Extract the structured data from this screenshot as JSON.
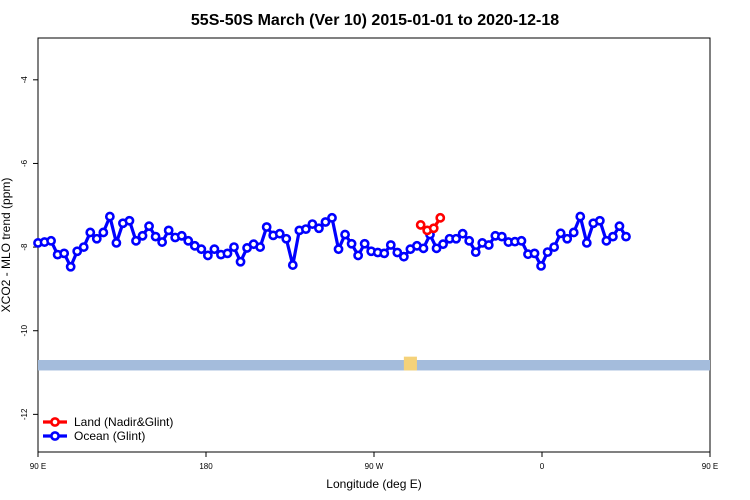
{
  "chart_data": {
    "type": "line",
    "title": "55S-50S March (Ver 10)   2015-01-01 to 2020-12-18",
    "xlabel": "Longitude (deg E)",
    "ylabel": "XCO2 - MLO trend (ppm)",
    "xlim": [
      90,
      450
    ],
    "ylim": [
      -12.9,
      -3.0
    ],
    "x_ticks": [
      {
        "value": 90,
        "label": "90 E"
      },
      {
        "value": 180,
        "label": "180"
      },
      {
        "value": 270,
        "label": "90 W"
      },
      {
        "value": 360,
        "label": "0"
      },
      {
        "value": 450,
        "label": "90 E"
      },
      {
        "value": 540,
        "label": "180"
      }
    ],
    "y_ticks": [
      {
        "value": -4,
        "label": "-4"
      },
      {
        "value": -6,
        "label": "-6"
      },
      {
        "value": -8,
        "label": "-8"
      },
      {
        "value": -10,
        "label": "-10"
      },
      {
        "value": -12,
        "label": "-12"
      }
    ],
    "grid": false,
    "legend_position": "bottom-left",
    "series": [
      {
        "name": "Land (Nadir&Glint)",
        "color": "#ff0000",
        "points": [
          [
            295,
            -7.47
          ],
          [
            298.5,
            -7.6
          ],
          [
            302,
            -7.55
          ],
          [
            305.5,
            -7.3
          ]
        ]
      },
      {
        "name": "Ocean (Glint)",
        "color": "#0000ff",
        "points": [
          [
            90,
            -7.9
          ],
          [
            93.5,
            -7.88
          ],
          [
            97,
            -7.85
          ],
          [
            100.5,
            -8.18
          ],
          [
            104,
            -8.15
          ],
          [
            107.5,
            -8.47
          ],
          [
            111,
            -8.1
          ],
          [
            114.5,
            -8.0
          ],
          [
            118,
            -7.65
          ],
          [
            121.5,
            -7.8
          ],
          [
            125,
            -7.65
          ],
          [
            128.5,
            -7.27
          ],
          [
            132,
            -7.9
          ],
          [
            135.5,
            -7.43
          ],
          [
            139,
            -7.37
          ],
          [
            142.5,
            -7.85
          ],
          [
            146,
            -7.73
          ],
          [
            149.5,
            -7.5
          ],
          [
            153,
            -7.75
          ],
          [
            156.5,
            -7.88
          ],
          [
            160,
            -7.6
          ],
          [
            163.5,
            -7.77
          ],
          [
            167,
            -7.73
          ],
          [
            170.5,
            -7.85
          ],
          [
            174,
            -7.97
          ],
          [
            177.5,
            -8.05
          ],
          [
            181,
            -8.2
          ],
          [
            184.5,
            -8.05
          ],
          [
            188,
            -8.18
          ],
          [
            191.5,
            -8.15
          ],
          [
            195,
            -8.0
          ],
          [
            198.5,
            -8.35
          ],
          [
            202,
            -8.02
          ],
          [
            205.5,
            -7.93
          ],
          [
            209,
            -8.0
          ],
          [
            212.5,
            -7.52
          ],
          [
            216,
            -7.72
          ],
          [
            219.5,
            -7.68
          ],
          [
            223,
            -7.8
          ],
          [
            226.5,
            -8.43
          ],
          [
            230,
            -7.6
          ],
          [
            233.5,
            -7.57
          ],
          [
            237,
            -7.45
          ],
          [
            240.5,
            -7.55
          ],
          [
            244,
            -7.4
          ],
          [
            247.5,
            -7.3
          ],
          [
            251,
            -8.05
          ],
          [
            254.5,
            -7.7
          ],
          [
            258,
            -7.92
          ],
          [
            261.5,
            -8.2
          ],
          [
            265,
            -7.92
          ],
          [
            268.5,
            -8.1
          ],
          [
            272,
            -8.13
          ],
          [
            275.5,
            -8.15
          ],
          [
            279,
            -7.95
          ],
          [
            282.5,
            -8.13
          ],
          [
            286,
            -8.23
          ],
          [
            289.5,
            -8.05
          ],
          [
            293,
            -7.97
          ],
          [
            296.5,
            -8.03
          ],
          [
            300,
            -7.7
          ],
          [
            303.5,
            -8.03
          ],
          [
            307,
            -7.93
          ],
          [
            310.5,
            -7.8
          ],
          [
            314,
            -7.8
          ],
          [
            317.5,
            -7.68
          ],
          [
            321,
            -7.85
          ],
          [
            324.5,
            -8.12
          ],
          [
            328,
            -7.9
          ],
          [
            331.5,
            -7.95
          ],
          [
            335,
            -7.73
          ],
          [
            338.5,
            -7.75
          ],
          [
            342,
            -7.88
          ],
          [
            345.5,
            -7.87
          ],
          [
            349,
            -7.85
          ],
          [
            352.5,
            -8.17
          ],
          [
            356,
            -8.15
          ],
          [
            359.5,
            -8.45
          ],
          [
            363,
            -8.12
          ],
          [
            366.5,
            -8.0
          ],
          [
            370,
            -7.67
          ],
          [
            373.5,
            -7.8
          ],
          [
            377,
            -7.65
          ],
          [
            380.5,
            -7.27
          ],
          [
            384,
            -7.9
          ],
          [
            387.5,
            -7.43
          ],
          [
            391,
            -7.37
          ],
          [
            394.5,
            -7.85
          ],
          [
            398,
            -7.75
          ],
          [
            401.5,
            -7.5
          ],
          [
            405,
            -7.75
          ]
        ]
      }
    ],
    "annotations": [
      {
        "type": "band",
        "color": "#a4bcdc",
        "y_range": [
          -10.95,
          -10.7
        ]
      },
      {
        "type": "band-patch",
        "color": "#f5d27a",
        "x_range": [
          286,
          293
        ],
        "y_range": [
          -10.95,
          -10.62
        ]
      }
    ]
  }
}
